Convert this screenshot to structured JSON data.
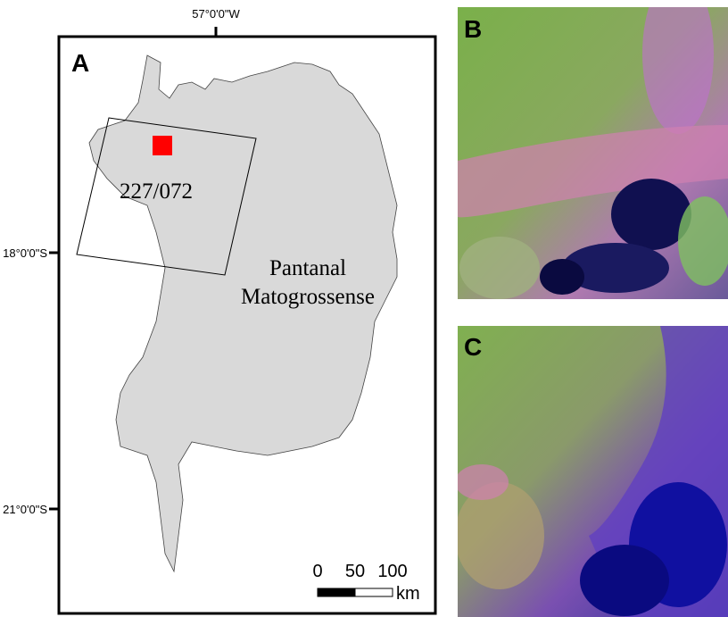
{
  "panel_a": {
    "label": "A",
    "lon_label": "57°0'0\"W",
    "lat_labels": [
      "18°0'0\"S",
      "21°0'0\"S"
    ],
    "scene_label": "227/072",
    "region_name": [
      "Pantanal",
      "Matogrossense"
    ],
    "scale_bar": {
      "ticks": [
        "0",
        "50",
        "100"
      ],
      "unit": "km"
    }
  },
  "panel_b": {
    "label": "B"
  },
  "panel_c": {
    "label": "C"
  }
}
